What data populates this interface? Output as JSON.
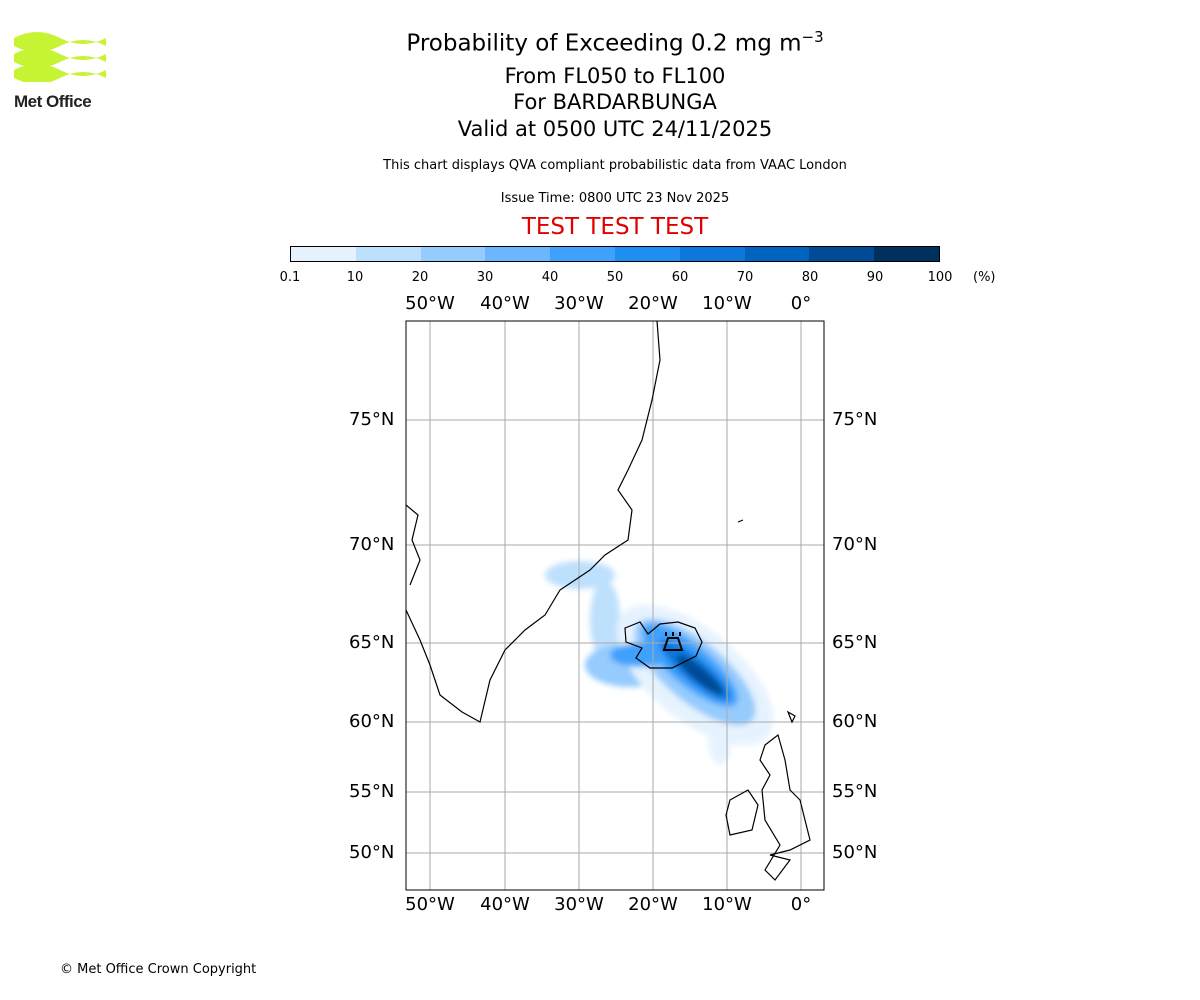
{
  "logo": {
    "text": "Met Office",
    "color": "#c6f432"
  },
  "header": {
    "title": "Probability of Exceeding 0.2 mg m",
    "title_sup": "−3",
    "levels": "From FL050 to FL100",
    "volcano": "For BARDARBUNGA",
    "valid": "Valid at 0500 UTC 24/11/2025",
    "description": "This chart displays QVA compliant probabilistic data from VAAC London",
    "issue": "Issue Time: 0800 UTC 23 Nov 2025",
    "test": "TEST TEST TEST"
  },
  "colorbar": {
    "ticks": [
      "0.1",
      "10",
      "20",
      "30",
      "40",
      "50",
      "60",
      "70",
      "80",
      "90",
      "100"
    ],
    "unit": "(%)",
    "colors": [
      "#e6f3fe",
      "#bde0fd",
      "#95cbfd",
      "#6bb6fd",
      "#3fa1fd",
      "#1e8ff0",
      "#0c78dc",
      "#0063bf",
      "#004a96",
      "#00305e"
    ]
  },
  "map": {
    "lon_labels": [
      "50°W",
      "40°W",
      "30°W",
      "20°W",
      "10°W",
      "0°"
    ],
    "lat_labels": [
      "75°N",
      "70°N",
      "65°N",
      "60°N",
      "55°N",
      "50°N"
    ]
  },
  "footer": {
    "copyright": "© Met Office Crown Copyright"
  }
}
